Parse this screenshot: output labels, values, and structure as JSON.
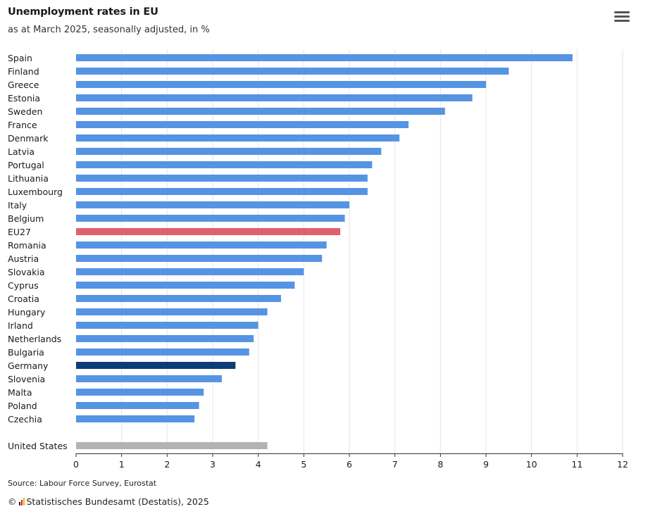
{
  "header": {
    "title": "Unemployment rates in EU",
    "subtitle": "as at March 2025, seasonally adjusted, in %",
    "menu_icon": "hamburger-menu-icon"
  },
  "footer": {
    "source": "Source: Labour Force Survey, Eurostat",
    "copyright_symbol": "©",
    "copyright_text": "Statistisches Bundesamt (Destatis), 2025"
  },
  "colors": {
    "default_bar": "#5594e3",
    "eu27_bar": "#e0606f",
    "germany_bar": "#0d3d78",
    "united_states_bar": "#b3b3b3",
    "gridline": "#e6e6e6",
    "axis": "#333333"
  },
  "chart_data": {
    "type": "bar",
    "orientation": "horizontal",
    "title": "Unemployment rates in EU",
    "subtitle": "as at March 2025, seasonally adjusted, in %",
    "xlabel": "",
    "ylabel": "",
    "xlim": [
      0,
      12
    ],
    "xticks": [
      0,
      1,
      2,
      3,
      4,
      5,
      6,
      7,
      8,
      9,
      10,
      11,
      12
    ],
    "grid": "vertical",
    "categories": [
      "Spain",
      "Finland",
      "Greece",
      "Estonia",
      "Sweden",
      "France",
      "Denmark",
      "Latvia",
      "Portugal",
      "Lithuania",
      "Luxembourg",
      "Italy",
      "Belgium",
      "EU27",
      "Romania",
      "Austria",
      "Slovakia",
      "Cyprus",
      "Croatia",
      "Hungary",
      "Irland",
      "Netherlands",
      "Bulgaria",
      "Germany",
      "Slovenia",
      "Malta",
      "Poland",
      "Czechia"
    ],
    "values": [
      10.9,
      9.5,
      9.0,
      8.7,
      8.1,
      7.3,
      7.1,
      6.7,
      6.5,
      6.4,
      6.4,
      6.0,
      5.9,
      5.8,
      5.5,
      5.4,
      5.0,
      4.8,
      4.5,
      4.2,
      4.0,
      3.9,
      3.8,
      3.5,
      3.2,
      2.8,
      2.7,
      2.6
    ],
    "highlights": {
      "EU27": "eu27_bar",
      "Germany": "germany_bar"
    },
    "comparison": {
      "category": "United States",
      "value": 4.2
    }
  }
}
